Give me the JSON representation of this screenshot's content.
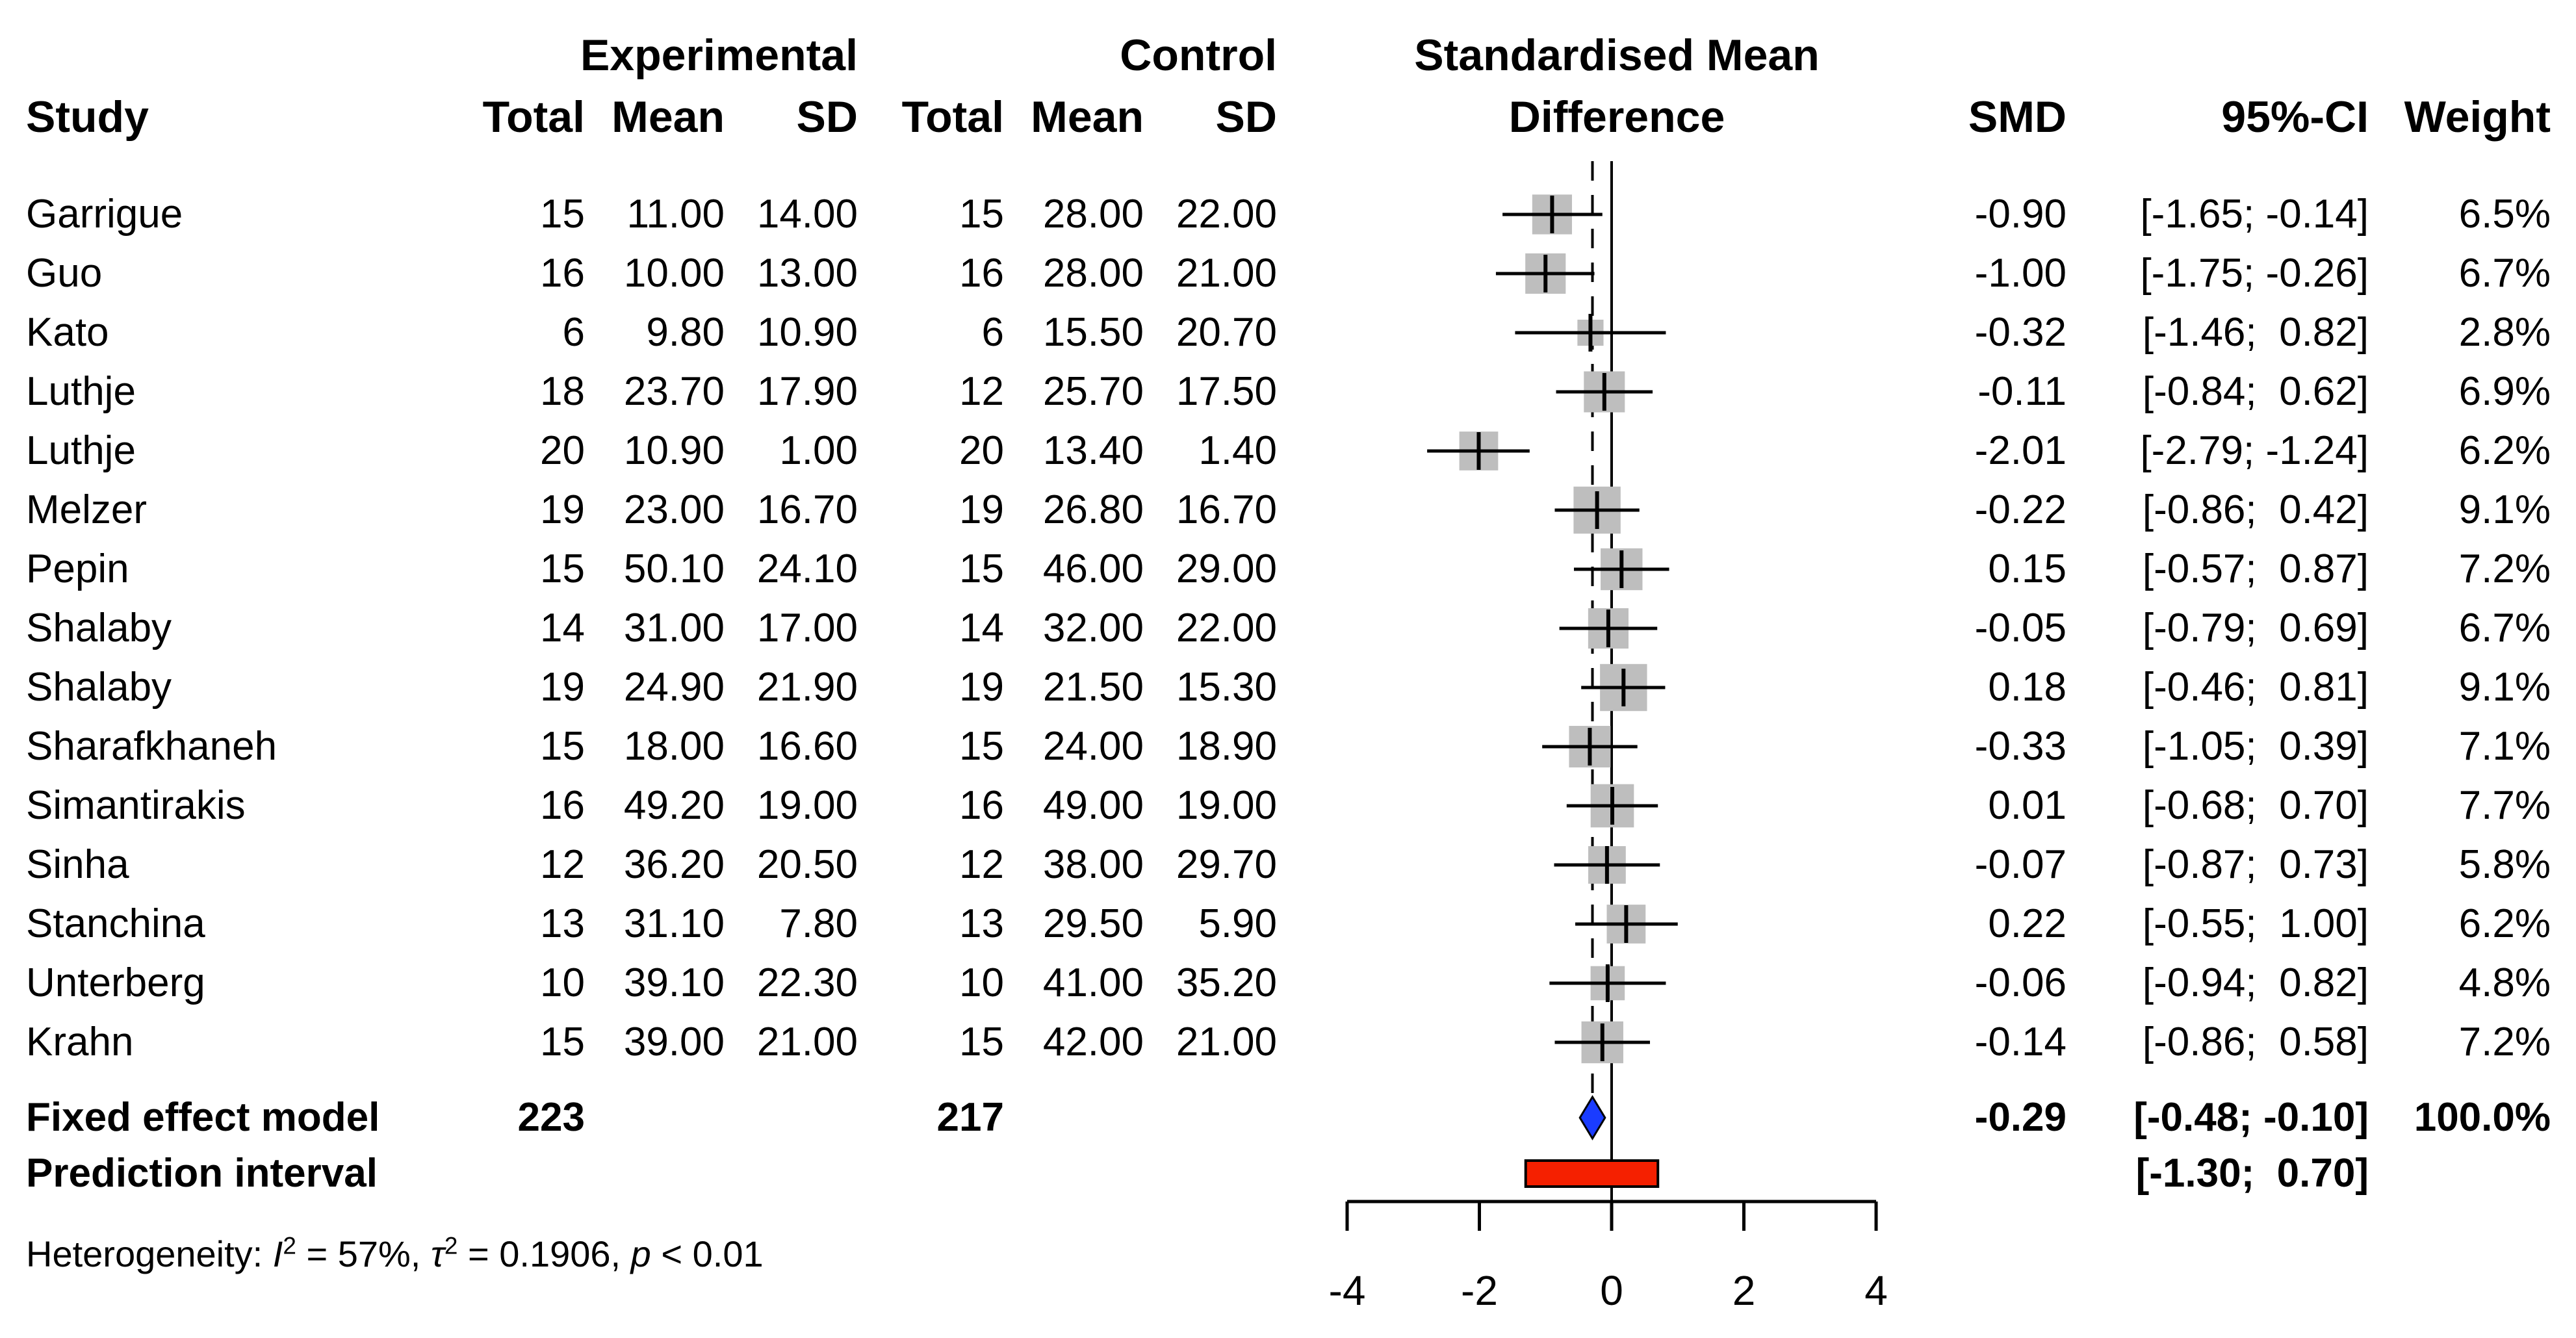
{
  "header": {
    "study": "Study",
    "experimental_group": "Experimental",
    "control_group": "Control",
    "col_total": "Total",
    "col_mean": "Mean",
    "col_sd": "SD",
    "forest_title_line1": "Standardised Mean",
    "forest_title_line2": "Difference",
    "col_smd": "SMD",
    "col_ci": "95%-CI",
    "col_weight": "Weight"
  },
  "colors": {
    "square": "#bebebe",
    "diamond": "#1a3cff",
    "prediction_bar": "#f52000",
    "line": "#000000",
    "text": "#000000"
  },
  "chart_data": {
    "type": "scatter",
    "variant": "forest_plot",
    "xlabel": "",
    "axis_ticks": [
      -4,
      -2,
      0,
      2,
      4
    ],
    "axis_range": [
      -4,
      4
    ],
    "reference_line_x": 0,
    "fixed_effect_line_x": -0.29,
    "grid": false,
    "legend": false,
    "studies": [
      {
        "name": "Garrigue",
        "exp_total": "15",
        "exp_mean": "11.00",
        "exp_sd": "14.00",
        "ctrl_total": "15",
        "ctrl_mean": "28.00",
        "ctrl_sd": "22.00",
        "smd": -0.9,
        "ci_lower": -1.65,
        "ci_upper": -0.14,
        "weight": 6.5,
        "smd_text": "-0.90",
        "ci_text": "[-1.65; -0.14]",
        "weight_text": "6.5%"
      },
      {
        "name": "Guo",
        "exp_total": "16",
        "exp_mean": "10.00",
        "exp_sd": "13.00",
        "ctrl_total": "16",
        "ctrl_mean": "28.00",
        "ctrl_sd": "21.00",
        "smd": -1.0,
        "ci_lower": -1.75,
        "ci_upper": -0.26,
        "weight": 6.7,
        "smd_text": "-1.00",
        "ci_text": "[-1.75; -0.26]",
        "weight_text": "6.7%"
      },
      {
        "name": "Kato",
        "exp_total": "6",
        "exp_mean": "9.80",
        "exp_sd": "10.90",
        "ctrl_total": "6",
        "ctrl_mean": "15.50",
        "ctrl_sd": "20.70",
        "smd": -0.32,
        "ci_lower": -1.46,
        "ci_upper": 0.82,
        "weight": 2.8,
        "smd_text": "-0.32",
        "ci_text": "[-1.46;  0.82]",
        "weight_text": "2.8%"
      },
      {
        "name": "Luthje",
        "exp_total": "18",
        "exp_mean": "23.70",
        "exp_sd": "17.90",
        "ctrl_total": "12",
        "ctrl_mean": "25.70",
        "ctrl_sd": "17.50",
        "smd": -0.11,
        "ci_lower": -0.84,
        "ci_upper": 0.62,
        "weight": 6.9,
        "smd_text": "-0.11",
        "ci_text": "[-0.84;  0.62]",
        "weight_text": "6.9%"
      },
      {
        "name": "Luthje",
        "exp_total": "20",
        "exp_mean": "10.90",
        "exp_sd": "1.00",
        "ctrl_total": "20",
        "ctrl_mean": "13.40",
        "ctrl_sd": "1.40",
        "smd": -2.01,
        "ci_lower": -2.79,
        "ci_upper": -1.24,
        "weight": 6.2,
        "smd_text": "-2.01",
        "ci_text": "[-2.79; -1.24]",
        "weight_text": "6.2%"
      },
      {
        "name": "Melzer",
        "exp_total": "19",
        "exp_mean": "23.00",
        "exp_sd": "16.70",
        "ctrl_total": "19",
        "ctrl_mean": "26.80",
        "ctrl_sd": "16.70",
        "smd": -0.22,
        "ci_lower": -0.86,
        "ci_upper": 0.42,
        "weight": 9.1,
        "smd_text": "-0.22",
        "ci_text": "[-0.86;  0.42]",
        "weight_text": "9.1%"
      },
      {
        "name": "Pepin",
        "exp_total": "15",
        "exp_mean": "50.10",
        "exp_sd": "24.10",
        "ctrl_total": "15",
        "ctrl_mean": "46.00",
        "ctrl_sd": "29.00",
        "smd": 0.15,
        "ci_lower": -0.57,
        "ci_upper": 0.87,
        "weight": 7.2,
        "smd_text": "0.15",
        "ci_text": "[-0.57;  0.87]",
        "weight_text": "7.2%"
      },
      {
        "name": "Shalaby",
        "exp_total": "14",
        "exp_mean": "31.00",
        "exp_sd": "17.00",
        "ctrl_total": "14",
        "ctrl_mean": "32.00",
        "ctrl_sd": "22.00",
        "smd": -0.05,
        "ci_lower": -0.79,
        "ci_upper": 0.69,
        "weight": 6.7,
        "smd_text": "-0.05",
        "ci_text": "[-0.79;  0.69]",
        "weight_text": "6.7%"
      },
      {
        "name": "Shalaby",
        "exp_total": "19",
        "exp_mean": "24.90",
        "exp_sd": "21.90",
        "ctrl_total": "19",
        "ctrl_mean": "21.50",
        "ctrl_sd": "15.30",
        "smd": 0.18,
        "ci_lower": -0.46,
        "ci_upper": 0.81,
        "weight": 9.1,
        "smd_text": "0.18",
        "ci_text": "[-0.46;  0.81]",
        "weight_text": "9.1%"
      },
      {
        "name": "Sharafkhaneh",
        "exp_total": "15",
        "exp_mean": "18.00",
        "exp_sd": "16.60",
        "ctrl_total": "15",
        "ctrl_mean": "24.00",
        "ctrl_sd": "18.90",
        "smd": -0.33,
        "ci_lower": -1.05,
        "ci_upper": 0.39,
        "weight": 7.1,
        "smd_text": "-0.33",
        "ci_text": "[-1.05;  0.39]",
        "weight_text": "7.1%"
      },
      {
        "name": "Simantirakis",
        "exp_total": "16",
        "exp_mean": "49.20",
        "exp_sd": "19.00",
        "ctrl_total": "16",
        "ctrl_mean": "49.00",
        "ctrl_sd": "19.00",
        "smd": 0.01,
        "ci_lower": -0.68,
        "ci_upper": 0.7,
        "weight": 7.7,
        "smd_text": "0.01",
        "ci_text": "[-0.68;  0.70]",
        "weight_text": "7.7%"
      },
      {
        "name": "Sinha",
        "exp_total": "12",
        "exp_mean": "36.20",
        "exp_sd": "20.50",
        "ctrl_total": "12",
        "ctrl_mean": "38.00",
        "ctrl_sd": "29.70",
        "smd": -0.07,
        "ci_lower": -0.87,
        "ci_upper": 0.73,
        "weight": 5.8,
        "smd_text": "-0.07",
        "ci_text": "[-0.87;  0.73]",
        "weight_text": "5.8%"
      },
      {
        "name": "Stanchina",
        "exp_total": "13",
        "exp_mean": "31.10",
        "exp_sd": "7.80",
        "ctrl_total": "13",
        "ctrl_mean": "29.50",
        "ctrl_sd": "5.90",
        "smd": 0.22,
        "ci_lower": -0.55,
        "ci_upper": 1.0,
        "weight": 6.2,
        "smd_text": "0.22",
        "ci_text": "[-0.55;  1.00]",
        "weight_text": "6.2%"
      },
      {
        "name": "Unterberg",
        "exp_total": "10",
        "exp_mean": "39.10",
        "exp_sd": "22.30",
        "ctrl_total": "10",
        "ctrl_mean": "41.00",
        "ctrl_sd": "35.20",
        "smd": -0.06,
        "ci_lower": -0.94,
        "ci_upper": 0.82,
        "weight": 4.8,
        "smd_text": "-0.06",
        "ci_text": "[-0.94;  0.82]",
        "weight_text": "4.8%"
      },
      {
        "name": "Krahn",
        "exp_total": "15",
        "exp_mean": "39.00",
        "exp_sd": "21.00",
        "ctrl_total": "15",
        "ctrl_mean": "42.00",
        "ctrl_sd": "21.00",
        "smd": -0.14,
        "ci_lower": -0.86,
        "ci_upper": 0.58,
        "weight": 7.2,
        "smd_text": "-0.14",
        "ci_text": "[-0.86;  0.58]",
        "weight_text": "7.2%"
      }
    ],
    "summary": {
      "label": "Fixed effect model",
      "exp_total": "223",
      "ctrl_total": "217",
      "smd": -0.29,
      "ci_lower": -0.48,
      "ci_upper": -0.1,
      "smd_text": "-0.29",
      "ci_text": "[-0.48; -0.10]",
      "weight_text": "100.0%"
    },
    "prediction": {
      "label": "Prediction interval",
      "ci_lower": -1.3,
      "ci_upper": 0.7,
      "ci_text": "[-1.30;  0.70]"
    },
    "heterogeneity": {
      "text": "Heterogeneity: I2 = 57%, t2 = 0.1906, p < 0.01",
      "segments": [
        {
          "text": "Heterogeneity: "
        },
        {
          "text": "I",
          "italic": true
        },
        {
          "text": "2",
          "sup": true
        },
        {
          "text": " = 57%, "
        },
        {
          "text": "τ",
          "italic": true
        },
        {
          "text": "2",
          "sup": true
        },
        {
          "text": " = 0.1906, "
        },
        {
          "text": "p",
          "italic": true
        },
        {
          "text": " < 0.01"
        }
      ]
    }
  }
}
